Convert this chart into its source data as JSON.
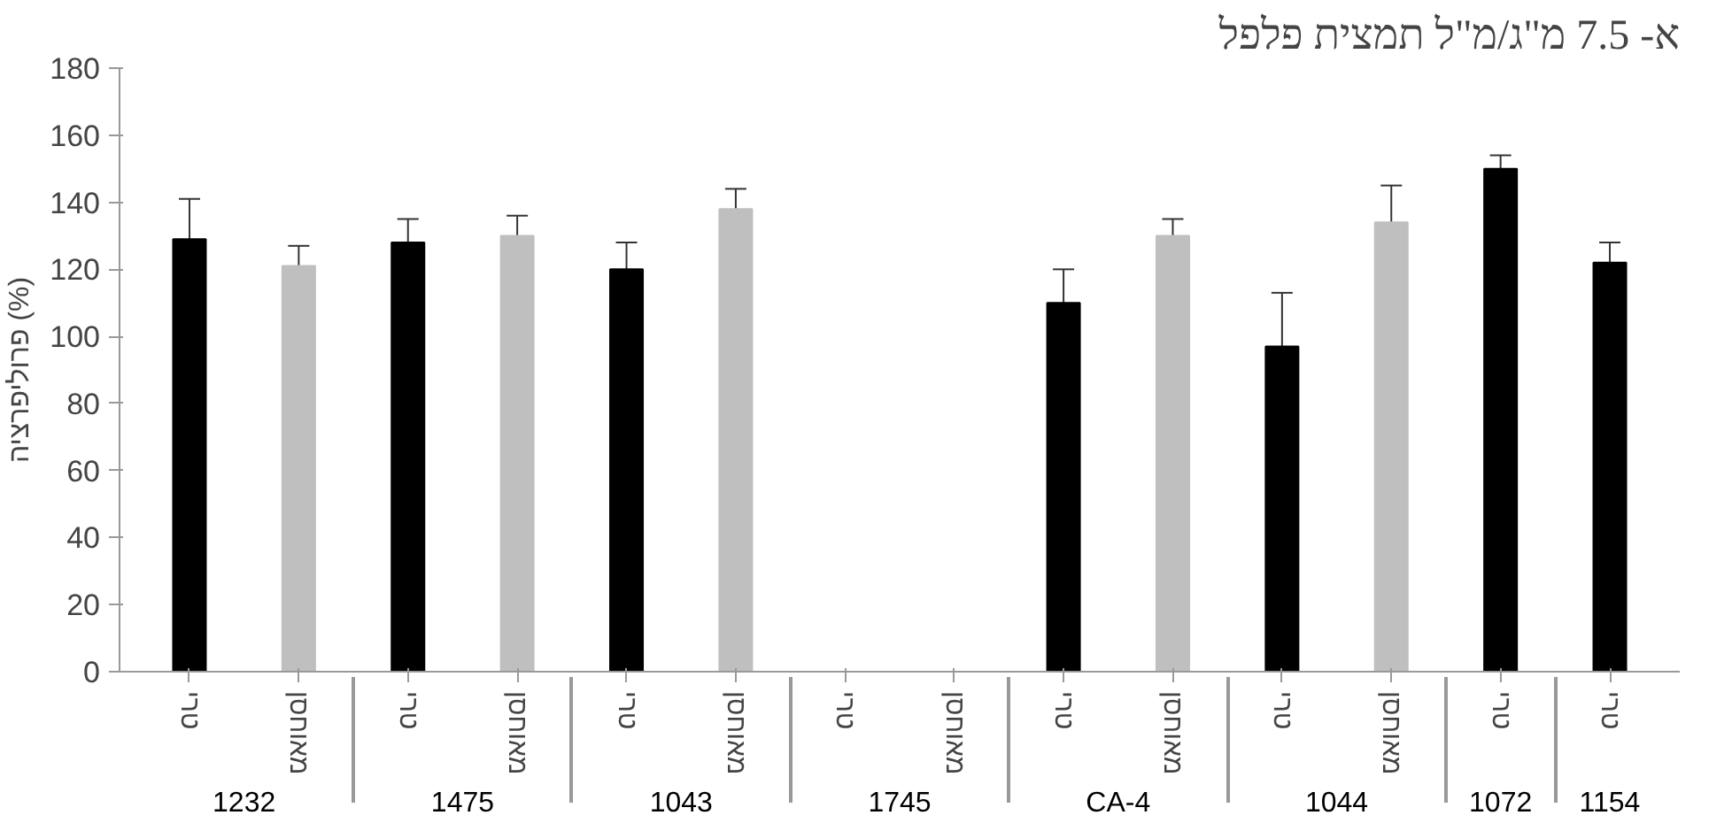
{
  "chart_data": {
    "type": "bar",
    "title": "א- 7.5 מ\"ג/מ\"ל תמצית פלפל",
    "ylabel": "פרוליפרציה (%)",
    "categories": [
      "טרי",
      "מאוחסן",
      "טרי",
      "מאוחסן",
      "טרי",
      "מאוחסן",
      "טרי",
      "מאוחסן",
      "טרי",
      "מאוחסן",
      "טרי",
      "מאוחסן",
      "טרי",
      "טרי"
    ],
    "annotations": [
      "1232",
      "1475",
      "1043",
      "1745",
      "CA-4",
      "1044",
      "1072",
      "1154"
    ],
    "values": [
      129,
      121,
      128,
      130,
      120,
      138,
      0,
      0,
      110,
      130,
      97,
      134,
      150,
      122
    ],
    "errors": [
      12,
      6,
      7,
      6,
      8,
      6,
      null,
      null,
      10,
      5,
      16,
      11,
      4,
      6
    ],
    "colors": [
      "#000000",
      "#bfbfbf",
      "#000000",
      "#bfbfbf",
      "#000000",
      "#bfbfbf",
      "#000000",
      "#bfbfbf",
      "#000000",
      "#bfbfbf",
      "#000000",
      "#bfbfbf",
      "#000000",
      "#000000"
    ],
    "ylim": [
      0,
      180
    ],
    "yticks": [
      0,
      20,
      40,
      60,
      80,
      100,
      120,
      140,
      160,
      180
    ],
    "grid": false
  }
}
